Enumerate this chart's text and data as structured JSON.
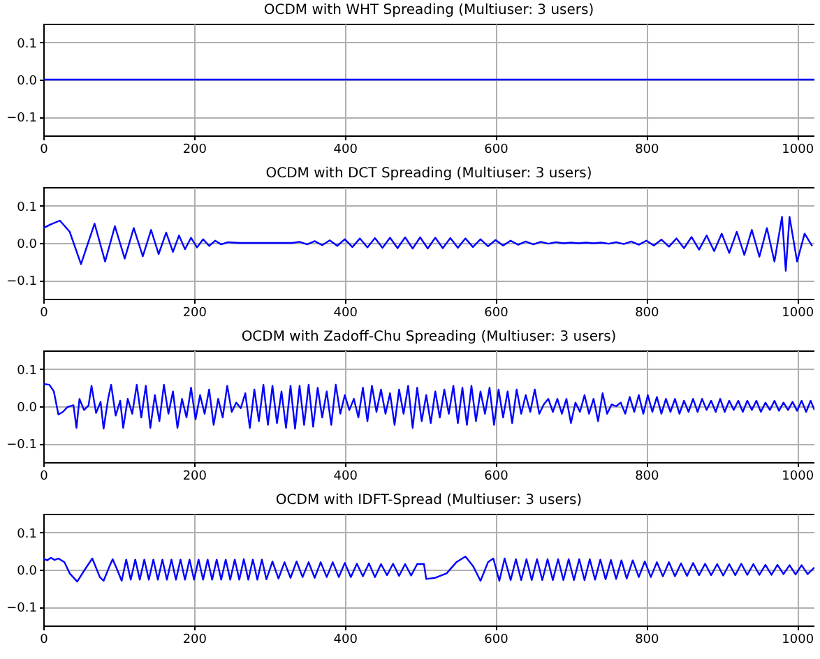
{
  "chart_data": [
    {
      "type": "line",
      "title": "OCDM with WHT Spreading (Multiuser: 3 users)",
      "color": "#0000ff",
      "grid": true,
      "xlim": [
        0,
        1023
      ],
      "ylim": [
        -0.15,
        0.15
      ],
      "xticks": [
        0,
        200,
        400,
        600,
        800,
        1000
      ],
      "yticks": [
        {
          "value": -0.1,
          "label": "−0.1"
        },
        {
          "value": 0,
          "label": "0.0"
        },
        {
          "value": 0.1,
          "label": "0.1"
        }
      ],
      "x": [
        0,
        1023
      ],
      "values": [
        0,
        0
      ]
    },
    {
      "type": "line",
      "title": "OCDM with DCT Spreading (Multiuser: 3 users)",
      "color": "#0000ff",
      "grid": true,
      "xlim": [
        0,
        1023
      ],
      "ylim": [
        -0.15,
        0.15
      ],
      "xticks": [
        0,
        200,
        400,
        600,
        800,
        1000
      ],
      "yticks": [
        {
          "value": -0.1,
          "label": "−0.1"
        },
        {
          "value": 0,
          "label": "0.0"
        },
        {
          "value": 0.1,
          "label": "0.1"
        }
      ],
      "x": [
        0,
        10,
        22,
        35,
        50,
        68,
        82,
        95,
        108,
        120,
        132,
        143,
        153,
        163,
        172,
        180,
        188,
        196,
        204,
        212,
        220,
        228,
        236,
        245,
        260,
        330,
        340,
        350,
        360,
        370,
        380,
        390,
        400,
        410,
        420,
        430,
        440,
        450,
        460,
        470,
        480,
        490,
        500,
        510,
        520,
        530,
        540,
        550,
        560,
        570,
        580,
        590,
        600,
        610,
        620,
        630,
        640,
        650,
        660,
        670,
        680,
        690,
        700,
        710,
        720,
        730,
        740,
        750,
        760,
        770,
        780,
        790,
        800,
        810,
        820,
        830,
        840,
        850,
        860,
        870,
        880,
        890,
        900,
        910,
        920,
        930,
        940,
        950,
        960,
        970,
        980,
        985,
        990,
        1000,
        1010,
        1020
      ],
      "values": [
        0.04,
        0.05,
        0.06,
        0.03,
        -0.057,
        0.052,
        -0.05,
        0.045,
        -0.042,
        0.04,
        -0.036,
        0.035,
        -0.03,
        0.028,
        -0.024,
        0.02,
        -0.017,
        0.014,
        -0.012,
        0.01,
        -0.008,
        0.006,
        -0.004,
        0.002,
        0,
        0,
        0.003,
        -0.004,
        0.005,
        -0.006,
        0.007,
        -0.008,
        0.01,
        -0.011,
        0.012,
        -0.012,
        0.013,
        -0.013,
        0.014,
        -0.014,
        0.015,
        -0.015,
        0.015,
        -0.015,
        0.014,
        -0.014,
        0.013,
        -0.013,
        0.012,
        -0.011,
        0.01,
        -0.009,
        0.008,
        -0.007,
        0.006,
        -0.005,
        0.004,
        -0.004,
        0.003,
        -0.002,
        0.002,
        -0.001,
        0.001,
        -0.001,
        0.001,
        -0.001,
        0.001,
        -0.002,
        0.002,
        -0.003,
        0.004,
        -0.005,
        0.006,
        -0.007,
        0.009,
        -0.01,
        0.012,
        -0.014,
        0.016,
        -0.018,
        0.02,
        -0.022,
        0.025,
        -0.027,
        0.03,
        -0.032,
        0.035,
        -0.037,
        0.04,
        -0.05,
        0.07,
        -0.075,
        0.07,
        -0.05,
        0.025,
        -0.008
      ]
    },
    {
      "type": "line",
      "title": "OCDM with Zadoff-Chu Spreading (Multiuser: 3 users)",
      "color": "#0000ff",
      "grid": true,
      "xlim": [
        0,
        1023
      ],
      "ylim": [
        -0.15,
        0.15
      ],
      "xticks": [
        0,
        200,
        400,
        600,
        800,
        1000
      ],
      "yticks": [
        {
          "value": -0.1,
          "label": "−0.1"
        },
        {
          "value": 0,
          "label": "0.0"
        },
        {
          "value": 0.1,
          "label": "0.1"
        }
      ],
      "x": [
        0,
        8,
        14,
        20,
        26,
        32,
        40,
        44,
        48,
        54,
        60,
        64,
        70,
        76,
        80,
        86,
        90,
        96,
        102,
        106,
        112,
        118,
        124,
        130,
        136,
        142,
        148,
        154,
        160,
        166,
        172,
        178,
        184,
        190,
        196,
        202,
        208,
        214,
        220,
        226,
        232,
        238,
        244,
        250,
        256,
        262,
        268,
        274,
        280,
        286,
        292,
        298,
        304,
        310,
        316,
        322,
        328,
        334,
        340,
        346,
        352,
        358,
        364,
        370,
        376,
        382,
        388,
        394,
        400,
        406,
        412,
        418,
        424,
        430,
        436,
        442,
        448,
        454,
        460,
        466,
        472,
        478,
        484,
        490,
        496,
        502,
        508,
        514,
        520,
        526,
        532,
        538,
        544,
        550,
        556,
        562,
        568,
        574,
        580,
        586,
        592,
        598,
        604,
        610,
        616,
        622,
        628,
        634,
        640,
        646,
        652,
        658,
        664,
        670,
        676,
        682,
        688,
        694,
        700,
        706,
        712,
        718,
        724,
        730,
        736,
        742,
        748,
        754,
        760,
        766,
        772,
        778,
        784,
        790,
        796,
        802,
        808,
        814,
        820,
        826,
        832,
        838,
        844,
        850,
        856,
        862,
        868,
        874,
        880,
        886,
        892,
        898,
        904,
        910,
        916,
        922,
        928,
        934,
        940,
        946,
        952,
        958,
        964,
        970,
        976,
        982,
        988,
        994,
        1000,
        1006,
        1012,
        1018,
        1023
      ],
      "values": [
        0.06,
        0.058,
        0.04,
        -0.022,
        -0.015,
        -0.002,
        0.003,
        -0.058,
        0.02,
        -0.01,
        0.002,
        0.055,
        -0.018,
        0.012,
        -0.06,
        0.02,
        0.058,
        -0.025,
        0.015,
        -0.058,
        0.02,
        -0.02,
        0.058,
        -0.03,
        0.055,
        -0.058,
        0.03,
        -0.04,
        0.058,
        -0.02,
        0.04,
        -0.058,
        0.02,
        -0.03,
        0.05,
        -0.035,
        0.03,
        -0.02,
        0.045,
        -0.05,
        0.02,
        -0.03,
        0.055,
        -0.015,
        0.01,
        -0.005,
        0.035,
        -0.058,
        0.045,
        -0.04,
        0.058,
        -0.05,
        0.055,
        -0.045,
        0.04,
        -0.058,
        0.055,
        -0.06,
        0.055,
        -0.05,
        0.058,
        -0.055,
        0.05,
        -0.03,
        0.04,
        -0.05,
        0.058,
        -0.02,
        0.03,
        -0.01,
        0.02,
        -0.03,
        0.05,
        -0.04,
        0.055,
        -0.015,
        0.045,
        -0.02,
        0.035,
        -0.05,
        0.045,
        -0.02,
        0.055,
        -0.058,
        0.05,
        -0.04,
        0.03,
        -0.045,
        0.04,
        -0.03,
        0.045,
        -0.02,
        0.055,
        -0.045,
        0.05,
        -0.05,
        0.055,
        -0.04,
        0.04,
        -0.02,
        0.05,
        -0.05,
        0.045,
        -0.03,
        0.04,
        -0.045,
        0.045,
        -0.02,
        0.03,
        -0.015,
        0.045,
        -0.02,
        0.005,
        0.02,
        -0.015,
        0.02,
        -0.02,
        0.02,
        -0.045,
        0.01,
        -0.015,
        0.03,
        -0.02,
        0.02,
        -0.04,
        0.035,
        -0.02,
        0.005,
        0,
        0.01,
        -0.02,
        0.025,
        -0.015,
        0.03,
        -0.02,
        0.03,
        -0.015,
        0.025,
        -0.02,
        0.02,
        -0.015,
        0.02,
        -0.02,
        0.015,
        -0.015,
        0.02,
        -0.015,
        0.02,
        -0.01,
        0.015,
        -0.015,
        0.02,
        -0.015,
        0.015,
        -0.01,
        0.015,
        -0.015,
        0.015,
        -0.01,
        0.015,
        -0.015,
        0.01,
        -0.01,
        0.015,
        -0.012,
        0.01,
        -0.01,
        0.012,
        -0.012,
        0.015,
        -0.015,
        0.015,
        -0.01
      ]
    },
    {
      "type": "line",
      "title": "OCDM with IDFT-Spread (Multiuser: 3 users)",
      "color": "#0000ff",
      "grid": true,
      "xlim": [
        0,
        1023
      ],
      "ylim": [
        -0.15,
        0.15
      ],
      "xticks": [
        0,
        200,
        400,
        600,
        800,
        1000
      ],
      "yticks": [
        {
          "value": -0.1,
          "label": "−0.1"
        },
        {
          "value": 0,
          "label": "0.0"
        },
        {
          "value": 0.1,
          "label": "0.1"
        }
      ],
      "x": [
        0,
        5,
        10,
        15,
        20,
        28,
        35,
        45,
        55,
        65,
        75,
        80,
        88,
        92,
        98,
        104,
        110,
        116,
        122,
        128,
        134,
        140,
        146,
        152,
        158,
        164,
        170,
        176,
        182,
        188,
        194,
        200,
        206,
        212,
        218,
        224,
        230,
        236,
        242,
        248,
        254,
        260,
        266,
        272,
        278,
        284,
        290,
        296,
        304,
        312,
        320,
        328,
        336,
        344,
        352,
        360,
        368,
        376,
        384,
        392,
        400,
        408,
        416,
        424,
        432,
        440,
        448,
        456,
        464,
        472,
        480,
        488,
        496,
        505,
        508,
        520,
        535,
        548,
        560,
        570,
        580,
        590,
        597,
        605,
        612,
        620,
        627,
        634,
        641,
        648,
        655,
        662,
        669,
        676,
        683,
        690,
        697,
        704,
        711,
        718,
        725,
        732,
        739,
        746,
        753,
        760,
        767,
        774,
        782,
        790,
        798,
        806,
        814,
        822,
        830,
        838,
        846,
        854,
        862,
        870,
        878,
        886,
        894,
        902,
        910,
        918,
        926,
        934,
        942,
        950,
        958,
        966,
        974,
        982,
        990,
        998,
        1006,
        1014,
        1023
      ],
      "values": [
        0.03,
        0.025,
        0.032,
        0.026,
        0.03,
        0.02,
        -0.01,
        -0.032,
        0,
        0.03,
        -0.02,
        -0.03,
        0.01,
        0.028,
        0,
        -0.03,
        0.027,
        -0.027,
        0.027,
        -0.027,
        0.027,
        -0.027,
        0.027,
        -0.027,
        0.027,
        -0.027,
        0.027,
        -0.027,
        0.027,
        -0.027,
        0.027,
        -0.027,
        0.027,
        -0.027,
        0.027,
        -0.027,
        0.027,
        -0.027,
        0.027,
        -0.027,
        0.027,
        -0.027,
        0.028,
        -0.027,
        0.027,
        -0.027,
        0.027,
        -0.026,
        0.022,
        -0.024,
        0.02,
        -0.022,
        0.022,
        -0.02,
        0.02,
        -0.022,
        0.02,
        -0.02,
        0.02,
        -0.02,
        0.018,
        -0.02,
        0.016,
        -0.018,
        0.017,
        -0.02,
        0.015,
        -0.015,
        0.016,
        -0.017,
        0.015,
        -0.016,
        0.015,
        0.015,
        -0.025,
        -0.022,
        -0.01,
        0.02,
        0.035,
        0.01,
        -0.03,
        0.02,
        0.03,
        -0.03,
        0.03,
        -0.028,
        0.028,
        -0.028,
        0.028,
        -0.028,
        0.028,
        -0.028,
        0.028,
        -0.028,
        0.028,
        -0.028,
        0.028,
        -0.028,
        0.028,
        -0.028,
        0.028,
        -0.027,
        0.027,
        -0.026,
        0.026,
        -0.025,
        0.025,
        -0.024,
        0.025,
        -0.02,
        0.022,
        -0.02,
        0.02,
        -0.018,
        0.02,
        -0.018,
        0.017,
        -0.017,
        0.018,
        -0.015,
        0.016,
        -0.015,
        0.015,
        -0.016,
        0.015,
        -0.015,
        0.016,
        -0.014,
        0.015,
        -0.014,
        0.013,
        -0.014,
        0.013,
        -0.012,
        0.012,
        -0.013,
        0.012,
        -0.012,
        0.006
      ]
    }
  ]
}
